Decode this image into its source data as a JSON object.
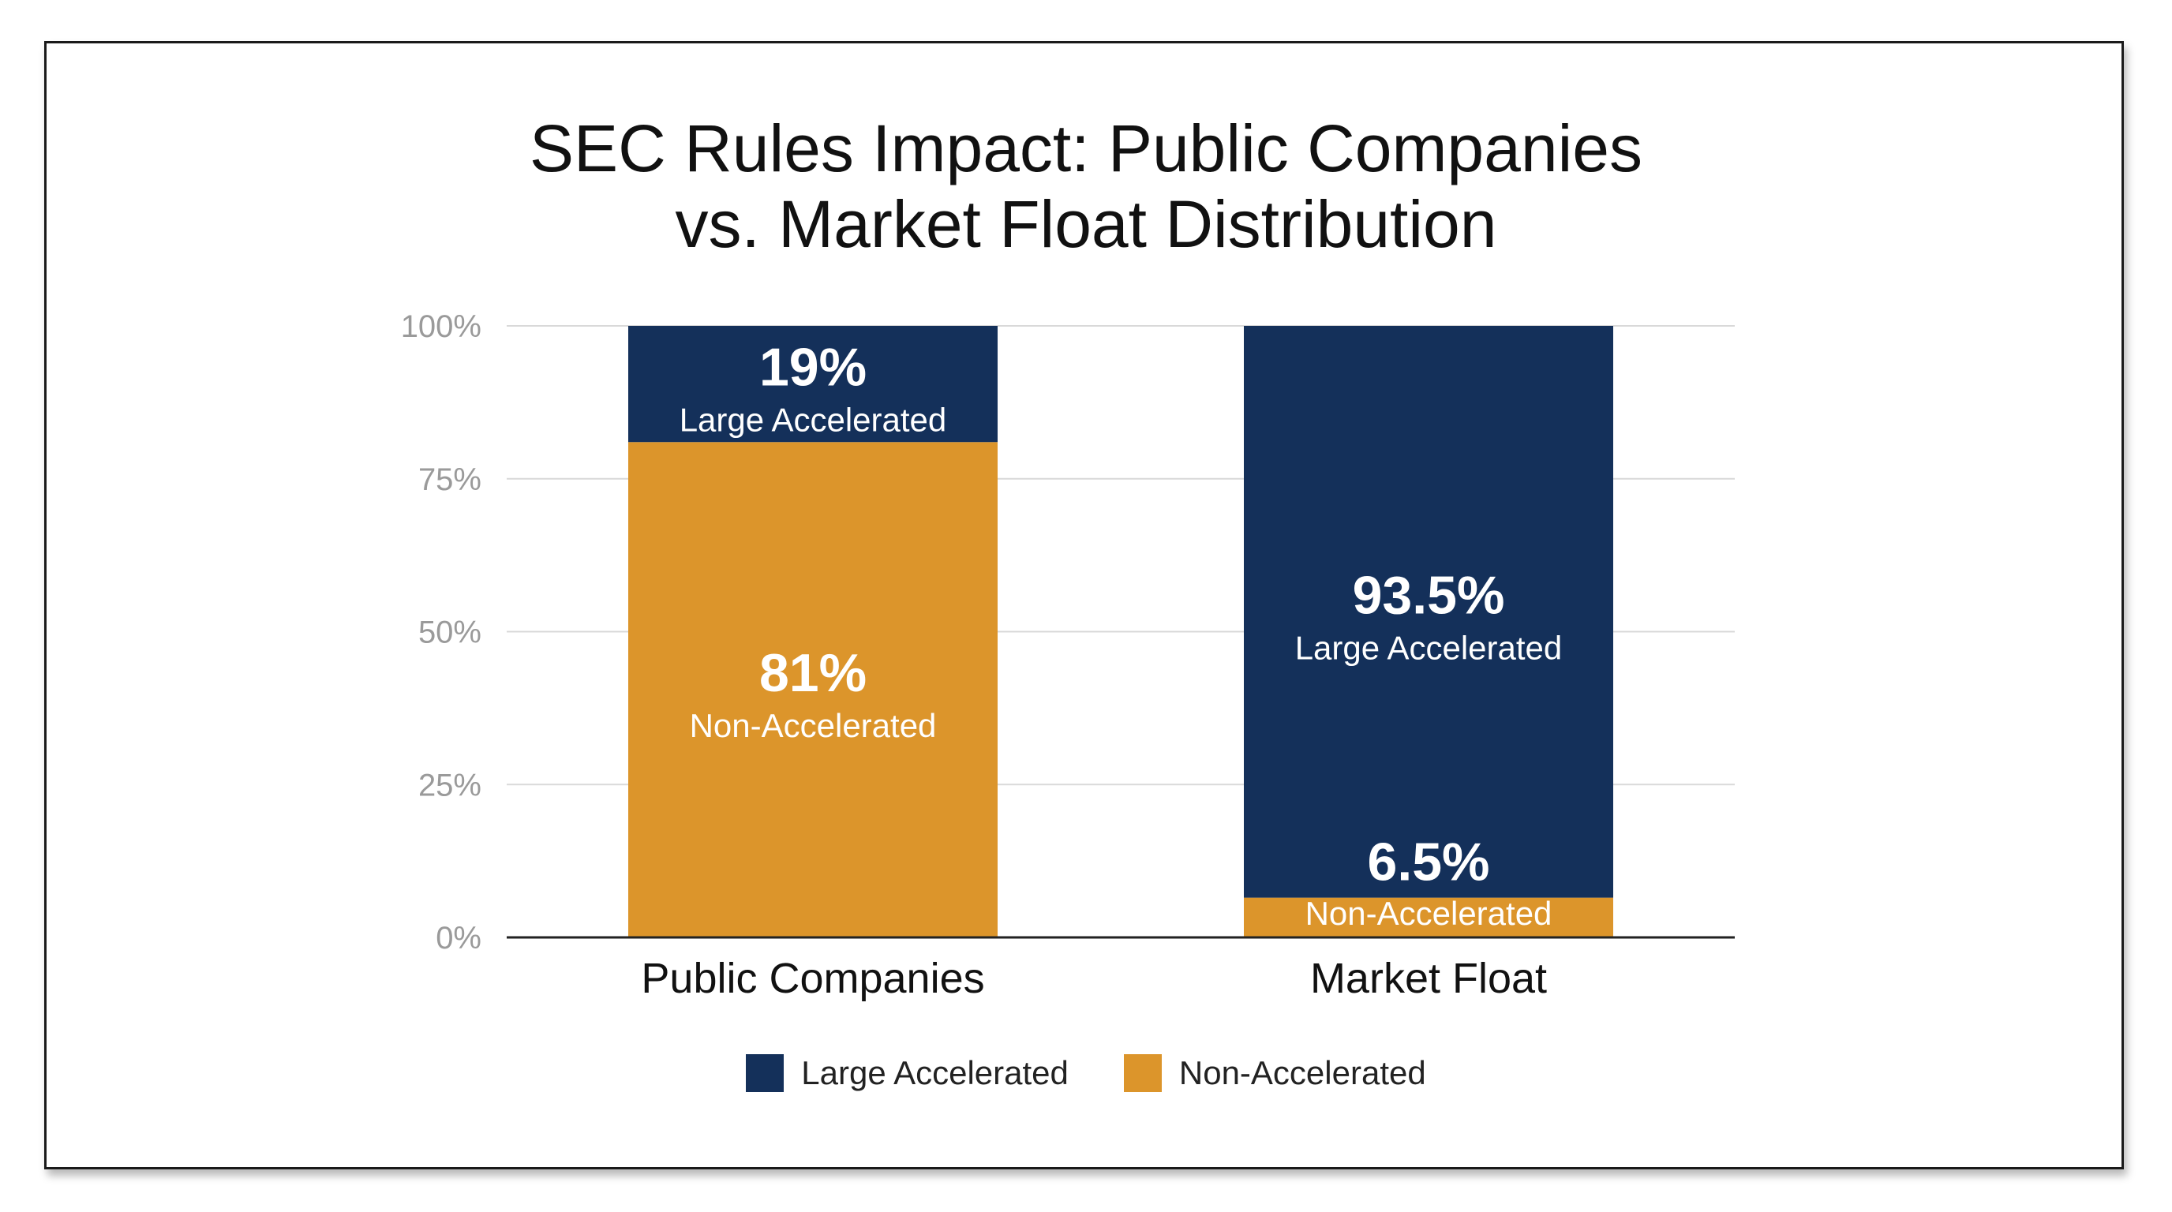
{
  "chart_data": {
    "type": "bar",
    "stacked": true,
    "title_lines": [
      "SEC Rules Impact: Public Companies",
      "vs. Market Float Distribution"
    ],
    "categories": [
      "Public Companies",
      "Market Float"
    ],
    "series": [
      {
        "name": "Non-Accelerated",
        "color": "#dc952b",
        "values": [
          81,
          6.5
        ],
        "labels": [
          "81%",
          "6.5%"
        ],
        "segment_names": [
          "Non-Accelerated",
          "Non-Accelerated"
        ]
      },
      {
        "name": "Large Accelerated",
        "color": "#14305a",
        "values": [
          19,
          93.5
        ],
        "labels": [
          "19%",
          "93.5%"
        ],
        "segment_names": [
          "Large Accelerated",
          "Large Accelerated"
        ]
      }
    ],
    "ylim": [
      0,
      100
    ],
    "yticks": [
      0,
      25,
      50,
      75,
      100
    ],
    "ytick_labels": [
      "0%",
      "25%",
      "50%",
      "75%",
      "100%"
    ],
    "grid": true,
    "legend_position": "bottom-center",
    "legend": [
      {
        "label": "Large Accelerated",
        "color": "#14305a"
      },
      {
        "label": "Non-Accelerated",
        "color": "#dc952b"
      }
    ]
  }
}
